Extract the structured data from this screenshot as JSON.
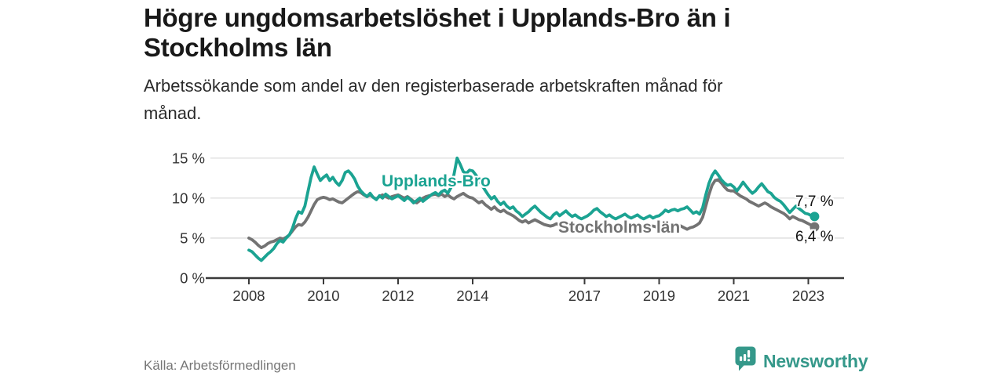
{
  "colors": {
    "upplands_bro": "#1ba392",
    "stockholm": "#737373",
    "grid": "#dcdcdc",
    "axis": "#3a3a3a",
    "tick_text": "#333333",
    "title": "#191919",
    "subtitle": "#2b2b2b",
    "source": "#767676",
    "brand": "#35988a",
    "background": "#ffffff"
  },
  "footer": {
    "source": "Källa: Arbetsförmedlingen",
    "brand_name": "Newsworthy",
    "brand_icon": "bar-chart-speech-bubble-icon"
  },
  "chart_data": {
    "type": "line",
    "title": "Högre ungdomsarbetslöshet i Upplands-Bro än i Stockholms län",
    "subtitle": "Arbetssökande som andel av den registerbaserade arbetskraften månad för månad.",
    "source": "Källa: Arbetsförmedlingen",
    "grid": "horizontal",
    "legend_position": "inline-labels",
    "x_start_year": 2008,
    "x_interval_months": 1,
    "x_end": "2023-03",
    "xlim": [
      2006.9,
      2024.0
    ],
    "ylim": [
      0,
      15.5
    ],
    "yticks": [
      {
        "value": 0,
        "label": "0 %"
      },
      {
        "value": 5,
        "label": "5 %"
      },
      {
        "value": 10,
        "label": "10 %"
      },
      {
        "value": 15,
        "label": "15 %"
      }
    ],
    "xticks": [
      {
        "year": 2008,
        "label": "2008"
      },
      {
        "year": 2010,
        "label": "2010"
      },
      {
        "year": 2012,
        "label": "2012"
      },
      {
        "year": 2014,
        "label": "2014"
      },
      {
        "year": 2017,
        "label": "2017"
      },
      {
        "year": 2019,
        "label": "2019"
      },
      {
        "year": 2021,
        "label": "2021"
      },
      {
        "year": 2023,
        "label": "2023"
      }
    ],
    "series": [
      {
        "name": "Upplands-Bro",
        "color": "#1ba392",
        "end_label": "7,7 %",
        "final_value": 7.7,
        "values": [
          3.5,
          3.3,
          2.9,
          2.5,
          2.2,
          2.6,
          3.0,
          3.3,
          3.7,
          4.3,
          4.7,
          4.5,
          5.0,
          5.4,
          6.2,
          7.4,
          8.3,
          8.1,
          9.0,
          10.8,
          12.6,
          13.9,
          13.0,
          12.2,
          12.6,
          12.9,
          12.2,
          12.6,
          12.0,
          11.6,
          12.2,
          13.2,
          13.4,
          13.0,
          12.4,
          11.5,
          10.9,
          10.5,
          10.2,
          10.6,
          10.1,
          9.8,
          10.3,
          10.0,
          10.5,
          10.2,
          9.9,
          10.1,
          10.3,
          10.0,
          9.7,
          10.1,
          9.8,
          9.4,
          9.7,
          10.0,
          9.6,
          9.9,
          10.2,
          10.5,
          10.7,
          10.4,
          10.8,
          11.0,
          10.6,
          11.3,
          13.0,
          15.0,
          14.2,
          13.3,
          13.1,
          13.5,
          13.4,
          12.9,
          12.3,
          11.6,
          11.0,
          10.4,
          9.9,
          10.2,
          9.6,
          9.2,
          9.5,
          9.0,
          8.7,
          8.9,
          8.4,
          8.1,
          7.7,
          8.0,
          8.3,
          8.7,
          9.0,
          8.6,
          8.2,
          7.9,
          7.6,
          7.4,
          7.9,
          8.2,
          7.8,
          8.1,
          8.4,
          8.0,
          7.7,
          7.9,
          7.6,
          7.4,
          7.6,
          7.8,
          8.1,
          8.5,
          8.7,
          8.3,
          8.0,
          7.7,
          7.9,
          7.6,
          7.4,
          7.6,
          7.8,
          8.0,
          7.7,
          7.5,
          7.7,
          7.9,
          7.6,
          7.4,
          7.6,
          7.8,
          7.5,
          7.7,
          7.8,
          8.1,
          8.5,
          8.3,
          8.5,
          8.6,
          8.4,
          8.6,
          8.7,
          8.9,
          8.5,
          8.1,
          8.3,
          8.0,
          8.8,
          10.4,
          11.8,
          12.8,
          13.4,
          12.9,
          12.3,
          11.9,
          11.6,
          11.7,
          11.4,
          10.9,
          11.4,
          12.0,
          11.5,
          11.0,
          10.6,
          10.9,
          11.4,
          11.8,
          11.3,
          10.8,
          10.6,
          10.1,
          9.8,
          9.6,
          9.2,
          8.7,
          8.2,
          8.6,
          9.0,
          8.7,
          8.4,
          8.1,
          8.0,
          7.8,
          7.7
        ]
      },
      {
        "name": "Stockholms län",
        "color": "#737373",
        "end_label": "6,4 %",
        "final_value": 6.4,
        "values": [
          5.0,
          4.8,
          4.5,
          4.1,
          3.8,
          4.0,
          4.3,
          4.5,
          4.6,
          4.8,
          5.0,
          4.9,
          5.1,
          5.4,
          5.9,
          6.4,
          6.7,
          6.6,
          7.0,
          7.6,
          8.4,
          9.2,
          9.8,
          10.0,
          10.1,
          10.0,
          9.8,
          9.9,
          9.7,
          9.5,
          9.4,
          9.7,
          10.0,
          10.3,
          10.6,
          10.8,
          10.7,
          10.4,
          10.2,
          10.4,
          10.1,
          9.9,
          10.2,
          10.4,
          10.2,
          10.0,
          10.2,
          10.3,
          10.4,
          10.2,
          10.0,
          10.2,
          9.9,
          9.6,
          9.4,
          9.7,
          10.0,
          10.2,
          10.3,
          10.4,
          10.5,
          10.3,
          10.5,
          10.2,
          10.4,
          10.1,
          9.9,
          10.2,
          10.4,
          10.6,
          10.3,
          10.1,
          10.0,
          9.7,
          9.4,
          9.6,
          9.2,
          8.9,
          8.6,
          8.9,
          8.5,
          8.3,
          8.5,
          8.2,
          8.0,
          7.8,
          7.5,
          7.2,
          7.0,
          7.2,
          6.9,
          7.1,
          7.3,
          7.1,
          6.9,
          6.7,
          6.6,
          6.5,
          6.6,
          6.8,
          6.6,
          6.5,
          6.7,
          6.6,
          6.4,
          6.5,
          6.4,
          6.3,
          6.4,
          6.5,
          6.6,
          6.7,
          6.6,
          6.5,
          6.4,
          6.5,
          6.6,
          6.5,
          6.4,
          6.4,
          6.5,
          6.6,
          6.5,
          6.4,
          6.5,
          6.6,
          6.5,
          6.4,
          6.4,
          6.5,
          6.5,
          6.4,
          6.4,
          6.5,
          6.6,
          6.6,
          6.7,
          6.6,
          6.7,
          6.5,
          6.3,
          6.1,
          6.3,
          6.4,
          6.6,
          6.9,
          7.6,
          9.0,
          10.4,
          11.6,
          12.2,
          12.3,
          11.9,
          11.4,
          11.0,
          10.9,
          10.9,
          10.6,
          10.3,
          10.1,
          9.9,
          9.6,
          9.4,
          9.2,
          9.0,
          9.2,
          9.4,
          9.2,
          8.9,
          8.7,
          8.5,
          8.3,
          8.1,
          7.8,
          7.4,
          7.7,
          7.5,
          7.3,
          7.2,
          7.0,
          6.8,
          6.6,
          6.4
        ]
      }
    ]
  }
}
